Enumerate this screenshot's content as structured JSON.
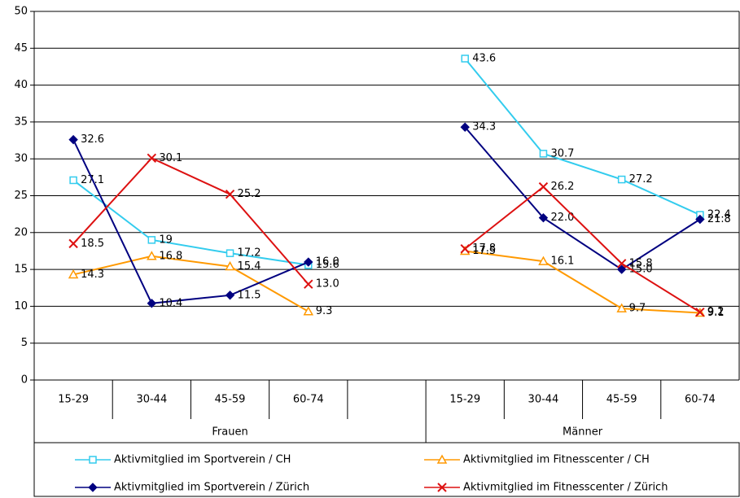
{
  "chart_data": {
    "type": "line",
    "categories": [
      "15-29",
      "30-44",
      "45-59",
      "60-74",
      null,
      "15-29",
      "30-44",
      "45-59",
      "60-74"
    ],
    "groups": [
      "Frauen",
      "Männer"
    ],
    "ylim": [
      0,
      50
    ],
    "yticks": [
      0,
      5,
      10,
      15,
      20,
      25,
      30,
      35,
      40,
      45,
      50
    ],
    "grid": true,
    "series": [
      {
        "name": "Aktivmitglied im Sportverein / CH",
        "color": "#33ccee",
        "marker": "square",
        "values": [
          27.1,
          19,
          17.2,
          15.6,
          null,
          43.6,
          30.7,
          27.2,
          22.4
        ],
        "value_labels": [
          "27.1",
          "19",
          "17.2",
          "15.6",
          null,
          "43.6",
          "30.7",
          "27.2",
          "22.4"
        ]
      },
      {
        "name": "Aktivmitglied im Fitnesscenter / CH",
        "color": "#ff9900",
        "marker": "triangle",
        "values": [
          14.3,
          16.8,
          15.4,
          9.3,
          null,
          17.5,
          16.1,
          9.7,
          9.1
        ],
        "value_labels": [
          "14.3",
          "16.8",
          "15.4",
          "9.3",
          null,
          "17.5",
          "16.1",
          "9.7",
          "9.1"
        ]
      },
      {
        "name": "Aktivmitglied im Sportverein / Zürich",
        "color": "#000080",
        "marker": "diamond",
        "values": [
          32.6,
          10.4,
          11.5,
          16.0,
          null,
          34.3,
          22.0,
          15.0,
          21.8
        ],
        "value_labels": [
          "32.6",
          "10.4",
          "11.5",
          "16.0",
          null,
          "34.3",
          "22.0",
          "15.0",
          "21.8"
        ]
      },
      {
        "name": "Aktivmitglied im Fitnesscenter / Zürich",
        "color": "#dd1111",
        "marker": "x",
        "values": [
          18.5,
          30.1,
          25.2,
          13.0,
          null,
          17.8,
          26.2,
          15.8,
          9.2
        ],
        "value_labels": [
          "18.5",
          "30.1",
          "25.2",
          "13.0",
          null,
          "17.8",
          "26.2",
          "15.8",
          "9.2"
        ]
      }
    ]
  }
}
